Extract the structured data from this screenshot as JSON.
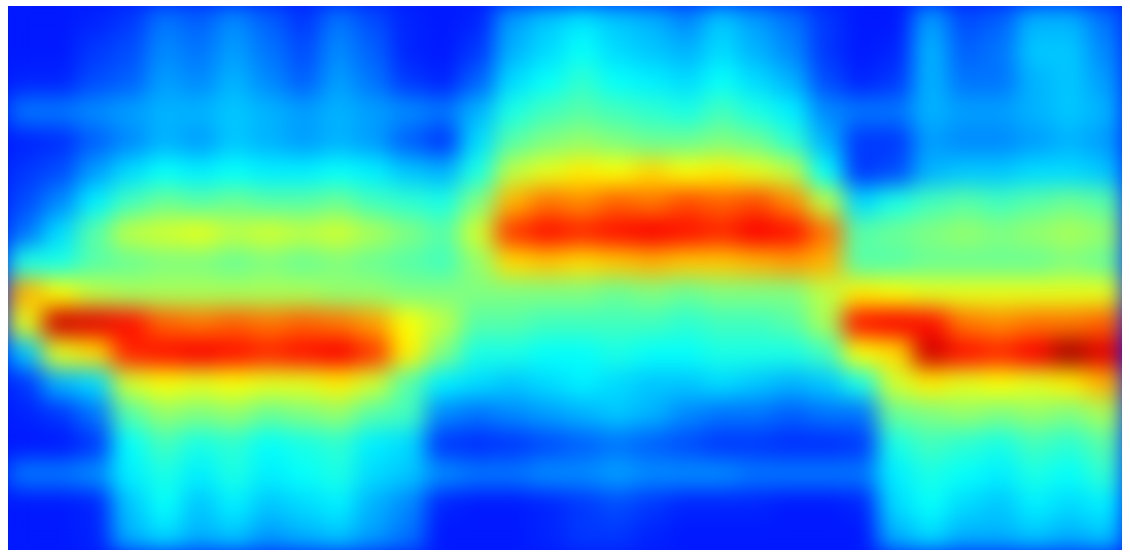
{
  "chart_data": {
    "type": "heatmap",
    "tick_labels": false,
    "color_range": [
      0,
      10
    ],
    "cells": [
      [
        1.5,
        1.5,
        1.6,
        1.8,
        2.4,
        2.2,
        2.6,
        2.2,
        1.8,
        2.4,
        2,
        1.6,
        1.5,
        1.6,
        2.8,
        3.2,
        3.5,
        3.2,
        3,
        2.6,
        3.2,
        2.8,
        2.4,
        1.8,
        1.5,
        1.5,
        2.8,
        2,
        2.2,
        3,
        3,
        2.4
      ],
      [
        1.5,
        1.5,
        1.8,
        2,
        2.6,
        2.4,
        2.8,
        2.4,
        2,
        2.6,
        2.2,
        1.6,
        1.5,
        1.8,
        3,
        3.4,
        3.8,
        3.4,
        3.2,
        3,
        3.4,
        3,
        2.6,
        1.8,
        1.5,
        1.6,
        3,
        2.2,
        2.4,
        3.2,
        3.2,
        2.6
      ],
      [
        1.6,
        1.6,
        2,
        2.2,
        2.8,
        2.6,
        3,
        2.6,
        2.2,
        2.8,
        2.4,
        1.8,
        1.6,
        2.2,
        3.4,
        3.8,
        4.2,
        3.8,
        3.6,
        3.4,
        3.8,
        3.4,
        3,
        2,
        1.6,
        1.8,
        3,
        2.4,
        2.4,
        3,
        3.2,
        2.8
      ],
      [
        2.4,
        2.4,
        2.6,
        2.8,
        3,
        3,
        3.2,
        3,
        2.8,
        3,
        2.8,
        2.6,
        2.4,
        3,
        4,
        4.4,
        4.6,
        4.4,
        4.2,
        4,
        4.4,
        4,
        3.6,
        2.6,
        2.4,
        2.4,
        3,
        2.8,
        2.8,
        3,
        3.2,
        3
      ],
      [
        1.6,
        1.7,
        2.2,
        2.6,
        3,
        2.8,
        3.2,
        3,
        2.8,
        3,
        2.8,
        2.2,
        1.8,
        3.4,
        4.6,
        5,
        5.2,
        5,
        4.8,
        4.8,
        5,
        4.8,
        4.2,
        3,
        1.8,
        1.8,
        2.8,
        2.6,
        2.6,
        2.8,
        3,
        2.8
      ],
      [
        1.8,
        2,
        2.8,
        3.4,
        3.8,
        3.6,
        3.8,
        3.6,
        3.6,
        3.8,
        3.6,
        3.2,
        3,
        4,
        5.6,
        6,
        6.4,
        6.2,
        6.6,
        6.2,
        6.4,
        6,
        5.6,
        3.8,
        1.8,
        2,
        3,
        3.2,
        3.2,
        3.4,
        3.4,
        3.2
      ],
      [
        2,
        2.6,
        3.6,
        4.4,
        4.8,
        4.6,
        4.8,
        4.6,
        4.6,
        4.8,
        4.4,
        4.2,
        4,
        5,
        7,
        7.6,
        7.4,
        7.8,
        7.6,
        8,
        7.8,
        8,
        7.4,
        5.6,
        3.4,
        4,
        4.4,
        4.6,
        4.4,
        4.6,
        4.8,
        4.6
      ],
      [
        2.4,
        3.4,
        4.6,
        5.6,
        5.8,
        6,
        5.6,
        5.8,
        5.6,
        5.8,
        5.4,
        5,
        4.6,
        5.8,
        8.2,
        8.6,
        8.4,
        8.6,
        8.8,
        8.6,
        8.4,
        8.8,
        8.6,
        7.6,
        4.6,
        4.8,
        5,
        5.2,
        5,
        5.2,
        5.4,
        5.2
      ],
      [
        4,
        4,
        4.6,
        4.8,
        5,
        5,
        4.8,
        5,
        4.8,
        5,
        4.8,
        4.6,
        4.4,
        5.2,
        6.6,
        6.8,
        6.6,
        6.8,
        7,
        6.8,
        6.8,
        7,
        7.2,
        7,
        4.6,
        4.6,
        4.8,
        4.8,
        4.8,
        4.8,
        5,
        4.8
      ],
      [
        7,
        6.2,
        5.6,
        5.4,
        5.4,
        5.4,
        5.4,
        5.4,
        5.4,
        5.2,
        5.2,
        5,
        5,
        5,
        5,
        5,
        5,
        4.8,
        5,
        4.8,
        5,
        5,
        5,
        5.6,
        6.4,
        6.2,
        6,
        6,
        6,
        6,
        6,
        6
      ],
      [
        6,
        9.2,
        9,
        8.6,
        7.8,
        7.6,
        7.8,
        7.6,
        7.8,
        7.6,
        7.2,
        6.2,
        5.6,
        4.6,
        4.6,
        4.4,
        4.4,
        4.4,
        4.4,
        4.2,
        4.4,
        4.4,
        4.6,
        5.4,
        8.6,
        8.8,
        8.6,
        7.6,
        7.4,
        7.6,
        7.6,
        7.8
      ],
      [
        3.2,
        6,
        6.6,
        8.4,
        8.6,
        8.8,
        8.6,
        8.4,
        8.6,
        8.8,
        8.2,
        6.4,
        5,
        4,
        4,
        3.8,
        3.8,
        4,
        3.8,
        3.8,
        4,
        4,
        4,
        4.4,
        6.2,
        6.6,
        9.2,
        8.6,
        8.4,
        8.8,
        9.6,
        9
      ],
      [
        1.8,
        3,
        3.4,
        5.8,
        6.2,
        6,
        6.2,
        6,
        6,
        6.4,
        5.8,
        4.6,
        3.6,
        3.4,
        3.2,
        3.4,
        3.6,
        3.4,
        3.2,
        3.2,
        3.4,
        3.2,
        3,
        3.2,
        4,
        5.8,
        6.4,
        6,
        6.2,
        6,
        6.4,
        7
      ],
      [
        1.6,
        1.8,
        2.4,
        4.6,
        5.2,
        5,
        5.2,
        4.8,
        5,
        5.2,
        4.6,
        4.4,
        2.6,
        2.4,
        2.6,
        2.8,
        3,
        3.2,
        3,
        2.6,
        2.4,
        2.4,
        2.2,
        2.4,
        2.4,
        4.8,
        5,
        5.2,
        5,
        5.2,
        5,
        5.4
      ],
      [
        1.5,
        1.5,
        1.8,
        3.8,
        4.4,
        4,
        4.2,
        3.8,
        4,
        4.2,
        3.6,
        3.4,
        1.8,
        1.7,
        1.8,
        2,
        2.2,
        2.4,
        2.2,
        2,
        1.8,
        1.8,
        1.7,
        1.7,
        1.8,
        4,
        4.4,
        4.2,
        4,
        4.4,
        4.2,
        4.6
      ],
      [
        2.4,
        2.4,
        2.6,
        3.6,
        4,
        3.6,
        4,
        3.6,
        3.8,
        4,
        3.4,
        3.2,
        2.6,
        2.4,
        2.4,
        2.6,
        2.6,
        2.8,
        2.6,
        2.6,
        2.6,
        2.4,
        2.4,
        2.4,
        2.4,
        3.6,
        4,
        3.8,
        3.6,
        4,
        3.8,
        4.2
      ],
      [
        1.5,
        1.5,
        1.6,
        3.2,
        3.8,
        3.2,
        3.6,
        3.2,
        3.4,
        3.6,
        3,
        2.6,
        1.6,
        1.5,
        1.5,
        1.6,
        1.8,
        2,
        1.8,
        1.6,
        1.6,
        1.6,
        1.5,
        1.5,
        1.6,
        3.4,
        3.8,
        3.4,
        3.2,
        3.6,
        3.4,
        3.6
      ],
      [
        1.5,
        1.5,
        1.6,
        3,
        3.4,
        3,
        3.2,
        2.8,
        3,
        3.2,
        2.8,
        2.4,
        1.5,
        1.5,
        1.5,
        1.6,
        1.8,
        1.8,
        1.6,
        1.5,
        1.5,
        1.5,
        1.5,
        1.5,
        1.5,
        3,
        3.4,
        3,
        3,
        3.2,
        3,
        3.2
      ]
    ]
  }
}
